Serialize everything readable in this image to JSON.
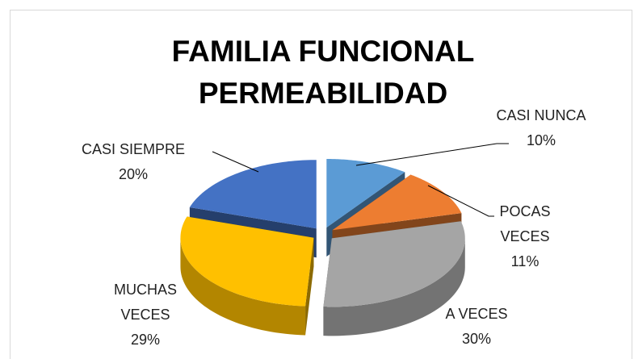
{
  "chart_data": {
    "type": "pie",
    "title": "FAMILIA FUNCIONAL PERMEABILIDAD",
    "categories": [
      "CASI NUNCA",
      "POCAS VECES",
      "A VECES",
      "MUCHAS VECES",
      "CASI SIEMPRE"
    ],
    "values": [
      10,
      11,
      30,
      29,
      20
    ],
    "value_labels": [
      "10%",
      "11%",
      "30%",
      "29%",
      "20%"
    ],
    "colors": [
      "#5b9bd5",
      "#ed7d31",
      "#a5a5a5",
      "#ffc000",
      "#4472c4"
    ]
  }
}
